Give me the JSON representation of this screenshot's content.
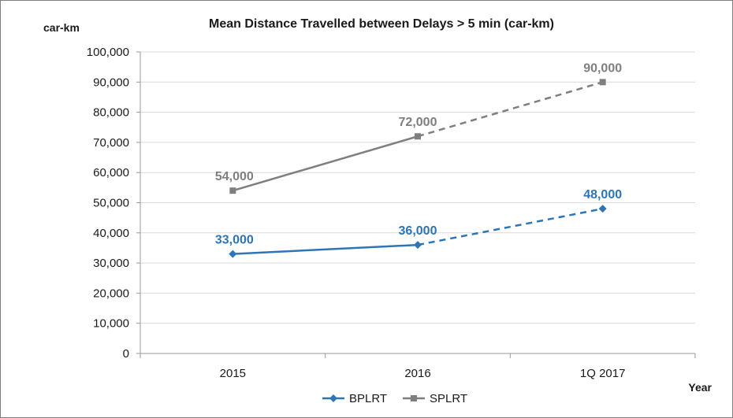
{
  "chart_data": {
    "type": "line",
    "title": "Mean Distance Travelled between Delays > 5 min (car-km)",
    "ylabel": "car-km",
    "xlabel": "Year",
    "categories": [
      "2015",
      "2016",
      "1Q 2017"
    ],
    "ylim": [
      0,
      100000
    ],
    "ytick_step": 10000,
    "ytick_labels": [
      "0",
      "10,000",
      "20,000",
      "30,000",
      "40,000",
      "50,000",
      "60,000",
      "70,000",
      "80,000",
      "90,000",
      "100,000"
    ],
    "grid": "horizontal",
    "legend_placement": "bottom",
    "series": [
      {
        "name": "BPLRT",
        "values": [
          33000,
          36000,
          48000
        ],
        "labels": [
          "33,000",
          "36,000",
          "48,000"
        ],
        "color": "#2e75b6",
        "marker": "diamond",
        "dashed_from_index": 1
      },
      {
        "name": "SPLRT",
        "values": [
          54000,
          72000,
          90000
        ],
        "labels": [
          "54,000",
          "72,000",
          "90,000"
        ],
        "color": "#7f7f7f",
        "marker": "square",
        "dashed_from_index": 1
      }
    ]
  }
}
